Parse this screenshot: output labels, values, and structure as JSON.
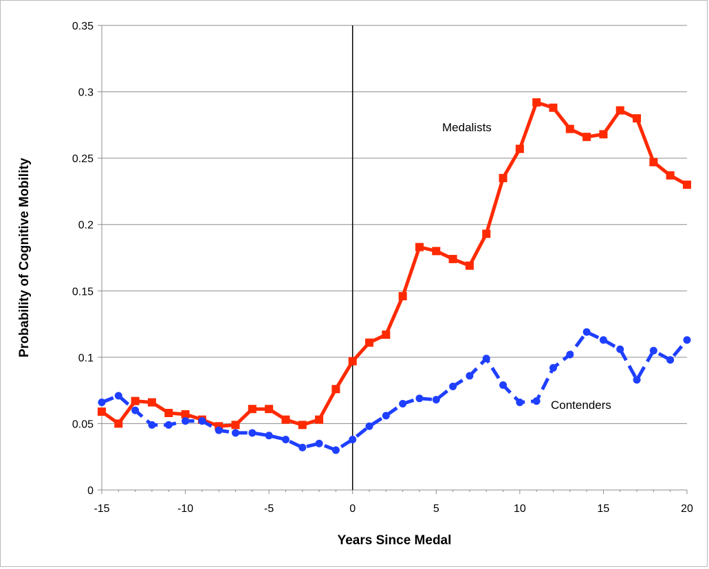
{
  "chart_data": {
    "type": "line",
    "xlabel": "Years Since Medal",
    "ylabel": "Probability of Cognitive Mobility",
    "xlim": [
      -15,
      20
    ],
    "ylim": [
      0,
      0.35
    ],
    "x_ticks": [
      "-15",
      "-10",
      "-5",
      "0",
      "5",
      "10",
      "15",
      "20"
    ],
    "y_ticks": [
      "0",
      "0.05",
      "0.1",
      "0.15",
      "0.2",
      "0.25",
      "0.3",
      "0.35"
    ],
    "grid": "horizontal",
    "reference_line_x": 0,
    "x": [
      -15,
      -14,
      -13,
      -12,
      -11,
      -10,
      -9,
      -8,
      -7,
      -6,
      -5,
      -4,
      -3,
      -2,
      -1,
      0,
      1,
      2,
      3,
      4,
      5,
      6,
      7,
      8,
      9,
      10,
      11,
      12,
      13,
      14,
      15,
      16,
      17,
      18,
      19,
      20
    ],
    "series": [
      {
        "name": "Medalists",
        "color": "#ff2a00",
        "line_style": "solid",
        "marker": "square",
        "values": [
          0.059,
          0.05,
          0.067,
          0.066,
          0.058,
          0.057,
          0.053,
          0.048,
          0.049,
          0.061,
          0.061,
          0.053,
          0.049,
          0.053,
          0.076,
          0.097,
          0.111,
          0.117,
          0.146,
          0.183,
          0.18,
          0.174,
          0.169,
          0.193,
          0.235,
          0.257,
          0.292,
          0.288,
          0.272,
          0.266,
          0.268,
          0.286,
          0.28,
          0.247,
          0.237,
          0.23
        ]
      },
      {
        "name": "Contenders",
        "color": "#1f3fff",
        "line_style": "dashed",
        "marker": "circle",
        "values": [
          0.066,
          0.071,
          0.06,
          0.049,
          0.049,
          0.052,
          0.052,
          0.045,
          0.043,
          0.043,
          0.041,
          0.038,
          0.032,
          0.035,
          0.03,
          0.038,
          0.048,
          0.056,
          0.065,
          0.069,
          0.068,
          0.078,
          0.086,
          0.099,
          0.079,
          0.066,
          0.067,
          0.092,
          0.102,
          0.119,
          0.113,
          0.106,
          0.083,
          0.105,
          0.098,
          0.113
        ]
      }
    ]
  }
}
